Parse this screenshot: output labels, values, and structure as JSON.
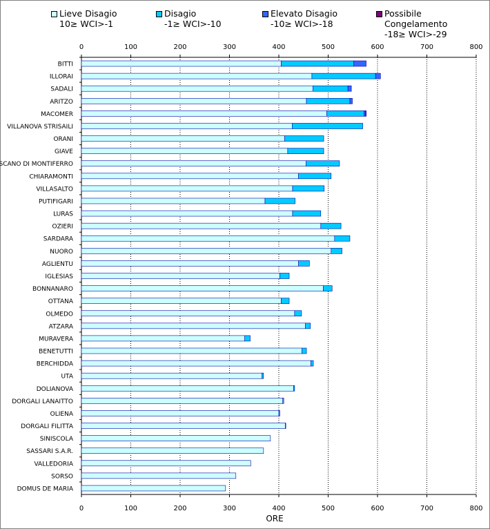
{
  "legend": [
    {
      "label": "Lieve Disagio",
      "range": "10≥ WCI>-1",
      "color": "#ccffff"
    },
    {
      "label": "Disagio",
      "range": "-1≥ WCI>-10",
      "color": "#00ccff"
    },
    {
      "label": "Elevato Disagio",
      "range": "-10≥ WCI>-18",
      "color": "#3366ff"
    },
    {
      "label": "Possibile Congelamento",
      "range": "-18≥ WCI>-29",
      "color": "#800080"
    }
  ],
  "chart_data": {
    "type": "bar",
    "orientation": "horizontal",
    "stacked": true,
    "xlabel": "ORE",
    "xlim": [
      0,
      800
    ],
    "xticks": [
      0,
      100,
      200,
      300,
      400,
      500,
      600,
      700,
      800
    ],
    "categories": [
      "BITTI",
      "ILLORAI",
      "SADALI",
      "ARITZO",
      "MACOMER",
      "VILLANOVA  STRISAILI",
      "ORANI",
      "GIAVE",
      "SCANO DI MONTIFERRO",
      "CHIARAMONTI",
      "VILLASALTO",
      "PUTIFIGARI",
      "LURAS",
      "OZIERI",
      "SARDARA",
      "NUORO",
      "AGLIENTU",
      "IGLESIAS",
      "BONNANARO",
      "OTTANA",
      "OLMEDO",
      "ATZARA",
      "MURAVERA",
      "BENETUTTI",
      "BERCHIDDA",
      "UTA",
      "DOLIANOVA",
      "DORGALI LANAITTO",
      "OLIENA",
      "DORGALI FILITTA",
      "SINISCOLA",
      "SASSARI  S.A.R.",
      "VALLEDORIA",
      "SORSO",
      "DOMUS DE MARIA"
    ],
    "series": [
      {
        "name": "Lieve Disagio",
        "values": [
          405,
          467,
          469,
          456,
          497,
          427,
          412,
          418,
          455,
          440,
          428,
          372,
          428,
          485,
          513,
          506,
          440,
          402,
          490,
          405,
          432,
          454,
          331,
          447,
          465,
          366,
          430,
          408,
          400,
          413,
          383,
          369,
          343,
          313,
          292
        ]
      },
      {
        "name": "Disagio",
        "values": [
          147,
          129,
          71,
          88,
          76,
          143,
          79,
          73,
          68,
          66,
          64,
          61,
          57,
          41,
          31,
          22,
          22,
          19,
          18,
          16,
          14,
          10,
          11,
          9,
          5,
          3,
          2,
          2,
          2,
          1,
          0,
          0,
          0,
          0,
          0
        ]
      },
      {
        "name": "Elevato Disagio",
        "values": [
          25,
          10,
          7,
          5,
          3,
          0,
          0,
          0,
          0,
          0,
          0,
          0,
          0,
          0,
          0,
          0,
          0,
          0,
          0,
          0,
          0,
          0,
          0,
          0,
          0,
          0,
          0,
          0,
          0,
          0,
          0,
          0,
          0,
          0,
          0
        ]
      },
      {
        "name": "Possibile Congelamento",
        "values": [
          0,
          0,
          0,
          0,
          1,
          0,
          0,
          0,
          0,
          0,
          0,
          0,
          0,
          0,
          0,
          0,
          0,
          0,
          0,
          0,
          0,
          0,
          0,
          0,
          0,
          0,
          0,
          0,
          0,
          0,
          0,
          0,
          0,
          0,
          0
        ]
      }
    ]
  }
}
